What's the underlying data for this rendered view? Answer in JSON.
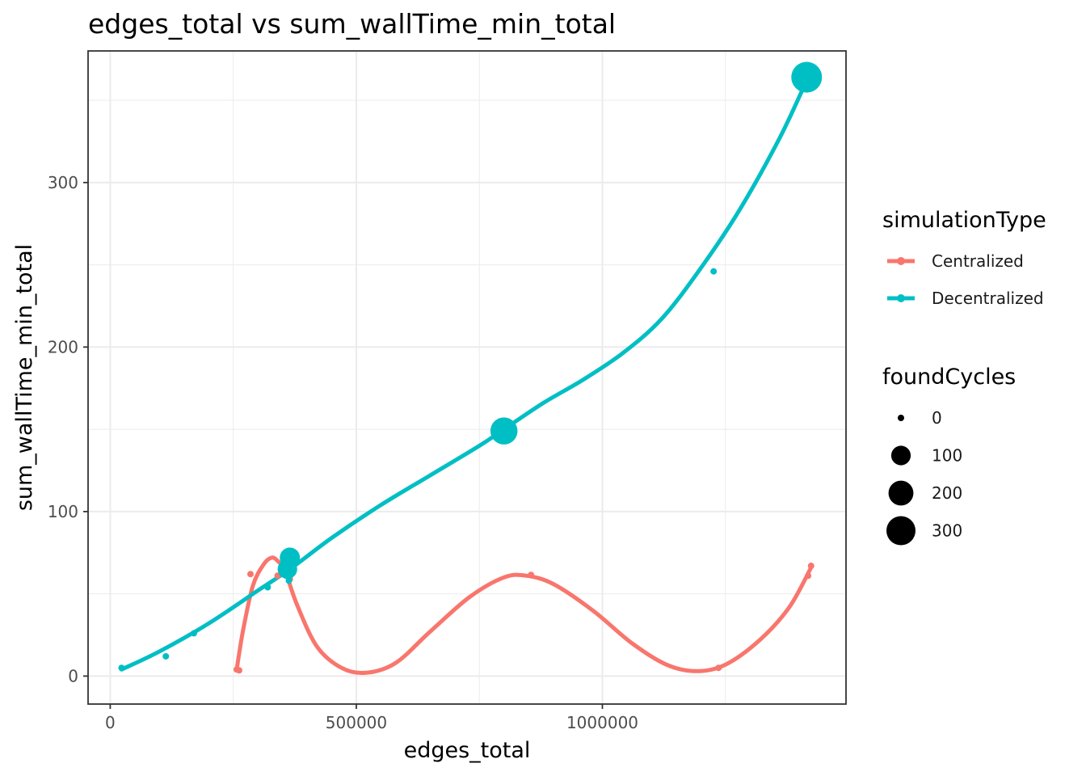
{
  "chart_data": {
    "type": "scatter",
    "title": "edges_total  vs  sum_wallTime_min_total",
    "xlabel": "edges_total",
    "ylabel": "sum_wallTime_min_total",
    "xlim": [
      -45000,
      1495000
    ],
    "ylim": [
      -17,
      380
    ],
    "x_ticks": [
      0,
      500000,
      1000000
    ],
    "x_tick_labels": [
      "0",
      "500000",
      "1000000"
    ],
    "y_ticks": [
      0,
      100,
      200,
      300
    ],
    "y_tick_labels": [
      "0",
      "100",
      "200",
      "300"
    ],
    "grid": true,
    "smoothing": "loess lines per series",
    "legend_position": "right",
    "color_legend": {
      "title": "simulationType",
      "entries": [
        "Centralized",
        "Decentralized"
      ]
    },
    "size_legend": {
      "title": "foundCycles",
      "values": [
        0,
        100,
        200,
        300
      ],
      "labels": [
        "0",
        "100",
        "200",
        "300"
      ]
    },
    "series": [
      {
        "name": "Centralized",
        "color": "#F8766D",
        "points": [
          {
            "x": 257000,
            "y": 4,
            "size": 0
          },
          {
            "x": 262000,
            "y": 3.5,
            "size": 0
          },
          {
            "x": 285000,
            "y": 62,
            "size": 0
          },
          {
            "x": 340000,
            "y": 61,
            "size": 0
          },
          {
            "x": 362000,
            "y": 61,
            "size": 0
          },
          {
            "x": 365000,
            "y": 59,
            "size": 0
          },
          {
            "x": 855000,
            "y": 61.5,
            "size": 0
          },
          {
            "x": 1236000,
            "y": 5,
            "size": 0
          },
          {
            "x": 1418000,
            "y": 61,
            "size": 0
          },
          {
            "x": 1424000,
            "y": 67,
            "size": 0
          }
        ],
        "smooth": [
          {
            "x": 257000,
            "y": 4
          },
          {
            "x": 270000,
            "y": 28
          },
          {
            "x": 290000,
            "y": 55
          },
          {
            "x": 312000,
            "y": 68
          },
          {
            "x": 328000,
            "y": 72
          },
          {
            "x": 340000,
            "y": 70
          },
          {
            "x": 355000,
            "y": 64
          },
          {
            "x": 380000,
            "y": 43
          },
          {
            "x": 420000,
            "y": 18
          },
          {
            "x": 470000,
            "y": 5
          },
          {
            "x": 520000,
            "y": 2
          },
          {
            "x": 580000,
            "y": 8
          },
          {
            "x": 650000,
            "y": 27
          },
          {
            "x": 730000,
            "y": 48
          },
          {
            "x": 800000,
            "y": 60
          },
          {
            "x": 845000,
            "y": 61
          },
          {
            "x": 900000,
            "y": 56
          },
          {
            "x": 980000,
            "y": 40
          },
          {
            "x": 1060000,
            "y": 20
          },
          {
            "x": 1130000,
            "y": 7
          },
          {
            "x": 1190000,
            "y": 3
          },
          {
            "x": 1250000,
            "y": 7
          },
          {
            "x": 1320000,
            "y": 22
          },
          {
            "x": 1380000,
            "y": 42
          },
          {
            "x": 1424000,
            "y": 66
          }
        ]
      },
      {
        "name": "Decentralized",
        "color": "#00BFC4",
        "points": [
          {
            "x": 23000,
            "y": 5,
            "size": 0
          },
          {
            "x": 113000,
            "y": 12,
            "size": 0
          },
          {
            "x": 170000,
            "y": 26,
            "size": 0
          },
          {
            "x": 320000,
            "y": 54,
            "size": 0
          },
          {
            "x": 360000,
            "y": 65,
            "size": 100
          },
          {
            "x": 363000,
            "y": 58,
            "size": 0
          },
          {
            "x": 365000,
            "y": 72,
            "size": 110
          },
          {
            "x": 800000,
            "y": 149,
            "size": 250
          },
          {
            "x": 1226000,
            "y": 246,
            "size": 0
          },
          {
            "x": 1415000,
            "y": 364,
            "size": 345
          }
        ],
        "smooth": [
          {
            "x": 23000,
            "y": 4
          },
          {
            "x": 100000,
            "y": 15
          },
          {
            "x": 200000,
            "y": 32
          },
          {
            "x": 300000,
            "y": 52
          },
          {
            "x": 365000,
            "y": 65
          },
          {
            "x": 450000,
            "y": 84
          },
          {
            "x": 550000,
            "y": 104
          },
          {
            "x": 650000,
            "y": 122
          },
          {
            "x": 750000,
            "y": 140
          },
          {
            "x": 800000,
            "y": 150
          },
          {
            "x": 880000,
            "y": 166
          },
          {
            "x": 960000,
            "y": 180
          },
          {
            "x": 1040000,
            "y": 196
          },
          {
            "x": 1120000,
            "y": 217
          },
          {
            "x": 1200000,
            "y": 248
          },
          {
            "x": 1280000,
            "y": 284
          },
          {
            "x": 1360000,
            "y": 327
          },
          {
            "x": 1415000,
            "y": 362
          }
        ]
      }
    ]
  }
}
